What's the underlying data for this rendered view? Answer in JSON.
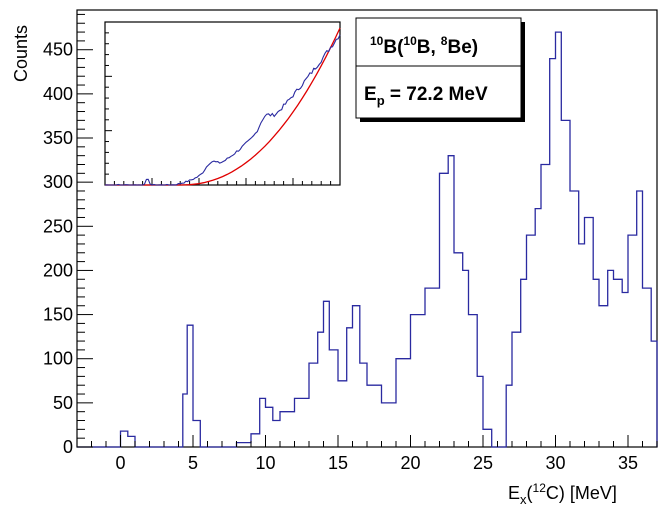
{
  "chart_data": [
    {
      "type": "line",
      "style": "step-histogram",
      "color": "#2a2aa0",
      "xlabel_main": "E",
      "xlabel_sub": "x",
      "xlabel_open": "(",
      "xlabel_sup": "12",
      "xlabel_rest": "C) [MeV]",
      "ylabel": "Counts",
      "xlim": [
        -3,
        37
      ],
      "ylim": [
        0,
        495
      ],
      "xticks": [
        0,
        5,
        10,
        15,
        20,
        25,
        30,
        35
      ],
      "yticks": [
        0,
        50,
        100,
        150,
        200,
        250,
        300,
        350,
        400,
        450
      ],
      "grid": false,
      "x": [
        -3,
        0,
        0.5,
        1,
        4,
        4.3,
        4.6,
        5,
        5.5,
        8,
        9,
        9.6,
        10,
        10.5,
        11,
        12,
        13,
        13.6,
        14,
        14.4,
        15,
        15.6,
        16,
        16.5,
        17,
        18,
        19,
        20,
        21,
        22,
        22.6,
        23,
        23.6,
        24,
        24.6,
        25,
        25.6,
        26,
        26.6,
        27,
        27.6,
        28,
        28.6,
        29,
        29.6,
        30,
        30.4,
        31,
        31.6,
        32,
        32.6,
        33,
        33.6,
        34,
        34.6,
        35,
        35.6,
        36,
        36.6,
        37
      ],
      "y": [
        0,
        18,
        12,
        0,
        0,
        60,
        138,
        30,
        0,
        5,
        15,
        55,
        45,
        30,
        40,
        55,
        95,
        130,
        165,
        110,
        75,
        135,
        160,
        95,
        70,
        50,
        100,
        150,
        180,
        310,
        330,
        220,
        200,
        150,
        80,
        20,
        0,
        0,
        70,
        130,
        190,
        240,
        270,
        320,
        440,
        470,
        370,
        290,
        230,
        260,
        190,
        160,
        200,
        190,
        175,
        240,
        290,
        180,
        120,
        0
      ],
      "inset": {
        "curves": [
          {
            "name": "data",
            "color": "#2a2aa0"
          },
          {
            "name": "fit",
            "color": "#e00000"
          }
        ]
      },
      "legend": {
        "line1_sup_a": "10",
        "line1_a": "B(",
        "line1_sup_b": "10",
        "line1_b": "B,",
        "line1_sup_c": "8",
        "line1_c": "Be)",
        "line2_main": "E",
        "line2_sub": "p",
        "line2_rest": " = 72.2 MeV"
      }
    }
  ]
}
